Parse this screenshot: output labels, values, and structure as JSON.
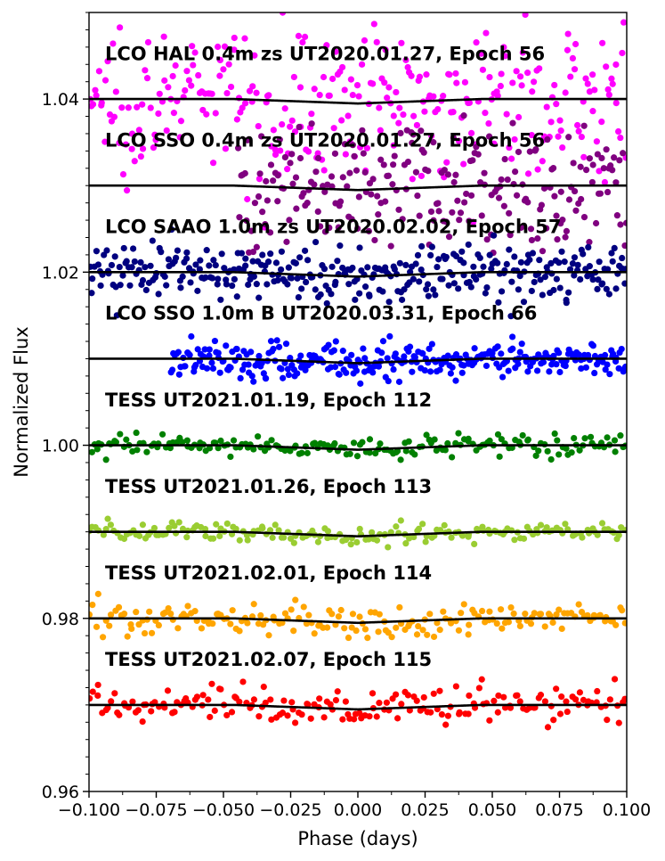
{
  "chart_data": {
    "type": "scatter",
    "title": "",
    "xlabel": "Phase (days)",
    "ylabel": "Normalized Flux",
    "xlim": [
      -0.1,
      0.1
    ],
    "ylim": [
      0.96,
      1.05
    ],
    "xticks": [
      -0.1,
      -0.075,
      -0.05,
      -0.025,
      0.0,
      0.025,
      0.05,
      0.075,
      0.1
    ],
    "xtick_labels": [
      "−0.100",
      "−0.075",
      "−0.050",
      "−0.025",
      "0.000",
      "0.025",
      "0.050",
      "0.075",
      "0.100"
    ],
    "yticks": [
      0.96,
      0.98,
      1.0,
      1.02,
      1.04
    ],
    "ytick_labels": [
      "0.96",
      "0.98",
      "1.00",
      "1.02",
      "1.04"
    ],
    "grid": false,
    "transit": {
      "ingress_start": -0.046,
      "full_start": -0.042,
      "full_end": 0.042,
      "egress_end": 0.046,
      "depth": 0.0018,
      "ingress_depth_fraction": 0.55
    },
    "series": [
      {
        "name": "LCO HAL 0.4m zs UT2020.01.27, Epoch 56",
        "color": "#ff00ff",
        "baseline": 1.04,
        "scatter": 0.0042,
        "n_points": 300,
        "x_start": -0.1,
        "x_end": 0.1,
        "label_flux": 1.0445
      },
      {
        "name": "LCO SSO 0.4m zs UT2020.01.27, Epoch 56",
        "color": "#800080",
        "baseline": 1.03,
        "scatter": 0.0038,
        "n_points": 230,
        "x_start": -0.045,
        "x_end": 0.1,
        "label_flux": 1.0345
      },
      {
        "name": "LCO SAAO 1.0m zs UT2020.02.02, Epoch 57",
        "color": "#000080",
        "baseline": 1.02,
        "scatter": 0.0016,
        "n_points": 330,
        "x_start": -0.1,
        "x_end": 0.1,
        "label_flux": 1.0245
      },
      {
        "name": "LCO SSO 1.0m B UT2020.03.31, Epoch 66",
        "color": "#0000ff",
        "baseline": 1.01,
        "scatter": 0.001,
        "n_points": 300,
        "x_start": -0.07,
        "x_end": 0.1,
        "label_flux": 1.0145
      },
      {
        "name": "TESS UT2021.01.19, Epoch 112",
        "color": "#008000",
        "baseline": 1.0,
        "scatter": 0.0006,
        "n_points": 180,
        "x_start": -0.1,
        "x_end": 0.1,
        "label_flux": 1.0045
      },
      {
        "name": "TESS UT2021.01.26, Epoch 113",
        "color": "#9acd32",
        "baseline": 0.99,
        "scatter": 0.0006,
        "n_points": 180,
        "x_start": -0.1,
        "x_end": 0.1,
        "label_flux": 0.9945
      },
      {
        "name": "TESS UT2021.02.01, Epoch 114",
        "color": "#ffa500",
        "baseline": 0.98,
        "scatter": 0.001,
        "n_points": 180,
        "x_start": -0.1,
        "x_end": 0.1,
        "label_flux": 0.9845
      },
      {
        "name": "TESS UT2021.02.07, Epoch 115",
        "color": "#ff0000",
        "baseline": 0.97,
        "scatter": 0.001,
        "n_points": 180,
        "x_start": -0.1,
        "x_end": 0.1,
        "label_flux": 0.9745
      }
    ]
  }
}
